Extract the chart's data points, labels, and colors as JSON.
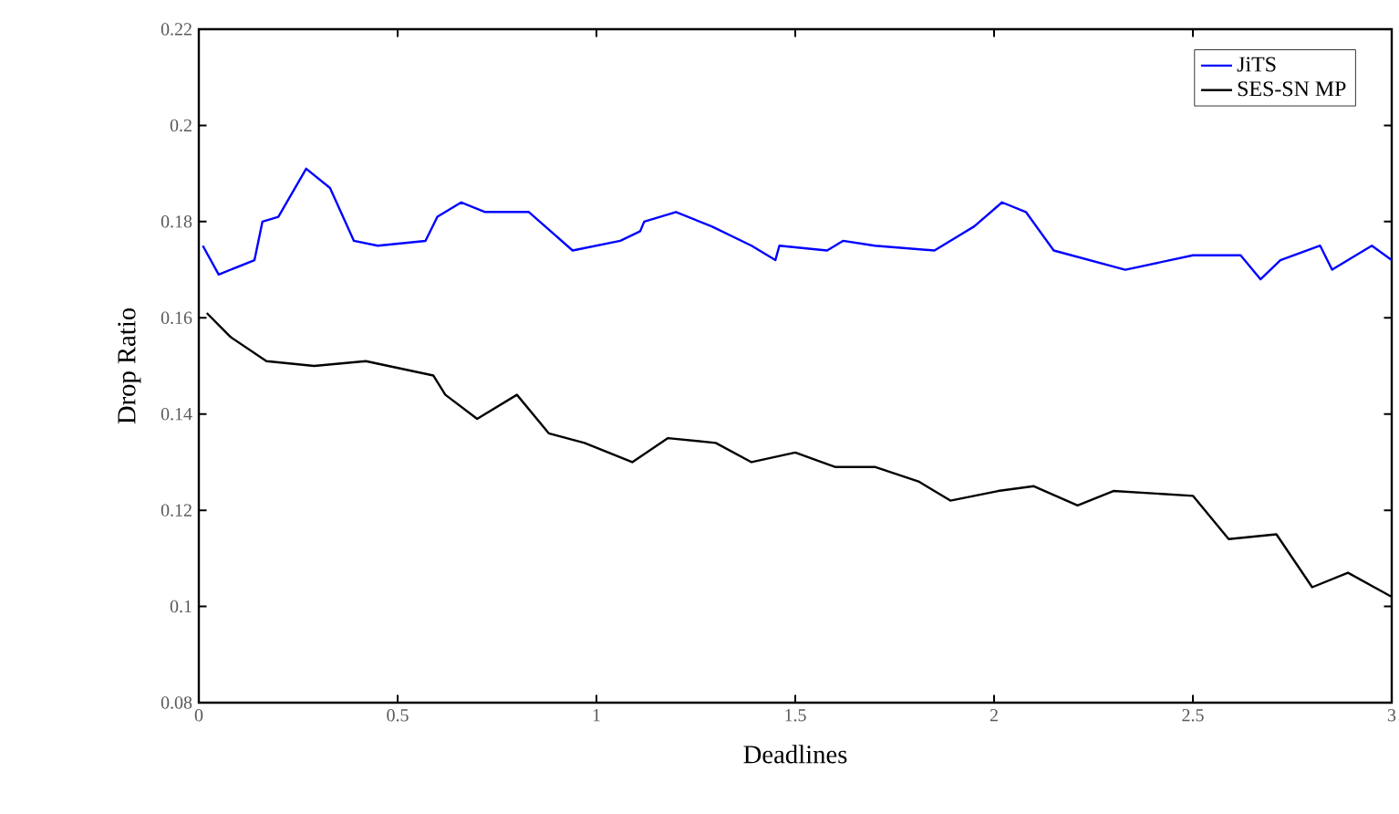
{
  "chart_data": {
    "type": "line",
    "xlabel": "Deadlines",
    "ylabel": "Drop Ratio",
    "xlim": [
      0,
      3
    ],
    "ylim": [
      0.08,
      0.22
    ],
    "xticks": [
      0,
      0.5,
      1,
      1.5,
      2,
      2.5,
      3
    ],
    "yticks": [
      0.08,
      0.1,
      0.12,
      0.14,
      0.16,
      0.18,
      0.2,
      0.22
    ],
    "legend": "top right",
    "grid": false,
    "series": [
      {
        "name": "JiTS",
        "color": "#0000ff",
        "x": [
          0.01,
          0.05,
          0.14,
          0.16,
          0.2,
          0.27,
          0.33,
          0.39,
          0.45,
          0.57,
          0.6,
          0.66,
          0.72,
          0.83,
          0.94,
          1.06,
          1.11,
          1.12,
          1.2,
          1.29,
          1.39,
          1.45,
          1.46,
          1.58,
          1.62,
          1.7,
          1.85,
          1.95,
          2.02,
          2.08,
          2.15,
          2.33,
          2.5,
          2.62,
          2.67,
          2.72,
          2.82,
          2.85,
          2.95,
          3.0
        ],
        "values": [
          0.175,
          0.169,
          0.172,
          0.18,
          0.181,
          0.191,
          0.187,
          0.176,
          0.175,
          0.176,
          0.181,
          0.184,
          0.182,
          0.182,
          0.174,
          0.176,
          0.178,
          0.18,
          0.182,
          0.179,
          0.175,
          0.172,
          0.175,
          0.174,
          0.176,
          0.175,
          0.174,
          0.179,
          0.184,
          0.182,
          0.174,
          0.17,
          0.173,
          0.173,
          0.168,
          0.172,
          0.175,
          0.17,
          0.175,
          0.172
        ]
      },
      {
        "name": "SES-SN MP",
        "color": "#000000",
        "x": [
          0.02,
          0.08,
          0.17,
          0.29,
          0.42,
          0.59,
          0.62,
          0.7,
          0.8,
          0.88,
          0.97,
          1.09,
          1.18,
          1.3,
          1.39,
          1.5,
          1.6,
          1.7,
          1.81,
          1.89,
          2.01,
          2.1,
          2.21,
          2.3,
          2.5,
          2.59,
          2.71,
          2.8,
          2.89,
          3.0
        ],
        "values": [
          0.161,
          0.156,
          0.151,
          0.15,
          0.151,
          0.148,
          0.144,
          0.139,
          0.144,
          0.136,
          0.134,
          0.13,
          0.135,
          0.134,
          0.13,
          0.132,
          0.129,
          0.129,
          0.126,
          0.122,
          0.124,
          0.125,
          0.121,
          0.124,
          0.123,
          0.114,
          0.115,
          0.104,
          0.107,
          0.102
        ]
      }
    ]
  }
}
